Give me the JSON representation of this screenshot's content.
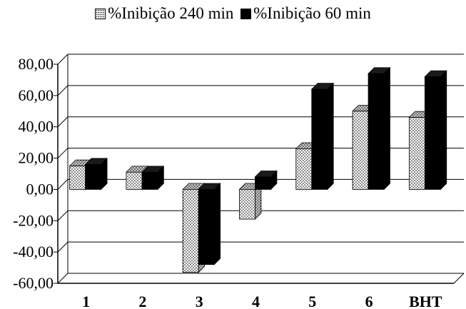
{
  "legend": {
    "series1_label": "%Inibição 240 min",
    "series2_label": "%Inibição 60 min"
  },
  "chart_data": {
    "type": "bar",
    "categories": [
      "1",
      "2",
      "3",
      "4",
      "5",
      "6",
      "BHT"
    ],
    "series": [
      {
        "name": "%Inibição 240 min",
        "values": [
          15,
          11,
          -53,
          -19,
          26,
          50,
          46
        ],
        "pattern": "dotted"
      },
      {
        "name": "%Inibição 60 min",
        "values": [
          16,
          11,
          -48,
          8,
          64,
          74,
          72
        ],
        "pattern": "solid",
        "color": "#000000"
      }
    ],
    "yticks": [
      "80,00",
      "60,00",
      "40,00",
      "20,00",
      "0,00",
      "-20,00",
      "-40,00",
      "-60,00"
    ],
    "ylim": [
      -60,
      80
    ],
    "style": "3d-clustered-bar",
    "grid": true,
    "legend_position": "top"
  }
}
